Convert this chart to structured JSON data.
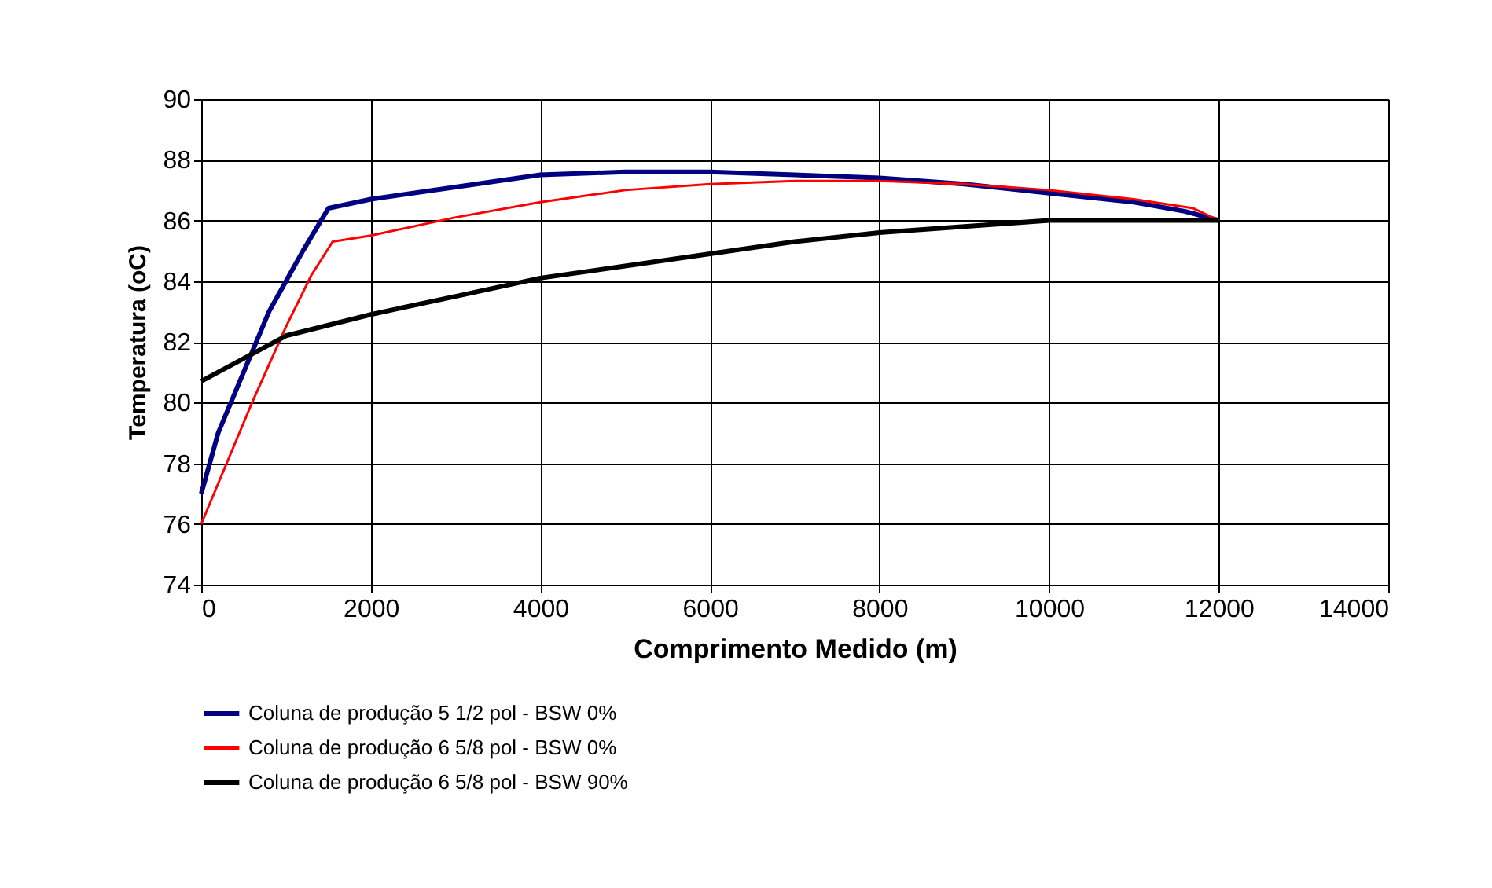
{
  "chart_data": {
    "type": "line",
    "xlabel": "Comprimento Medido (m)",
    "ylabel": "Temperatura (oC)",
    "xlim": [
      0,
      14000
    ],
    "xticks": [
      0,
      2000,
      4000,
      6000,
      8000,
      10000,
      12000,
      14000
    ],
    "ylim": [
      74,
      90
    ],
    "yticks": [
      74,
      76,
      78,
      80,
      82,
      84,
      86,
      88,
      90
    ],
    "grid": true,
    "legend": "bottom",
    "marker": "none",
    "line_style": "solid",
    "series": [
      {
        "name": "Coluna de produção 5 1/2 pol - BSW 0%",
        "color": "#000080",
        "x": [
          0,
          200,
          500,
          800,
          1000,
          1200,
          1500,
          2000,
          3000,
          4000,
          5000,
          6000,
          7000,
          8000,
          9000,
          10000,
          11000,
          11600,
          12000
        ],
        "values": [
          77,
          79,
          81,
          83,
          84,
          85,
          86.4,
          86.7,
          87.1,
          87.5,
          87.6,
          87.6,
          87.5,
          87.4,
          87.2,
          86.9,
          86.6,
          86.3,
          86
        ]
      },
      {
        "name": "Coluna de produção 6 5/8 pol - BSW 0%",
        "color": "#ff0000",
        "x": [
          0,
          300,
          600,
          1000,
          1300,
          1550,
          2000,
          3000,
          4000,
          5000,
          6000,
          7000,
          8000,
          9000,
          10000,
          11000,
          11700,
          12000
        ],
        "values": [
          76,
          78,
          80,
          82.5,
          84.2,
          85.3,
          85.5,
          86.1,
          86.6,
          87,
          87.2,
          87.3,
          87.3,
          87.2,
          87,
          86.7,
          86.4,
          86
        ]
      },
      {
        "name": "Coluna de produção 6 5/8 pol - BSW 90%",
        "color": "#000000",
        "x": [
          0,
          1000,
          2000,
          3000,
          4000,
          5000,
          6000,
          7000,
          8000,
          9000,
          10000,
          12000
        ],
        "values": [
          80.7,
          82.2,
          82.9,
          83.5,
          84.1,
          84.5,
          84.9,
          85.3,
          85.6,
          85.8,
          86,
          86
        ]
      }
    ]
  }
}
